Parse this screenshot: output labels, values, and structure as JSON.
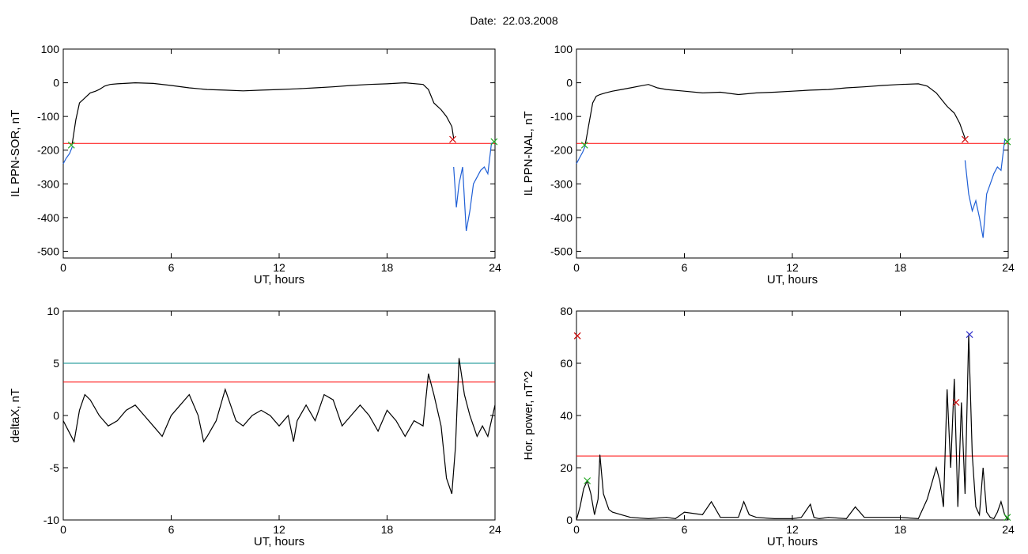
{
  "header": {
    "date_label": "Date:",
    "date_value": "22.03.2008"
  },
  "colors": {
    "data": "#000000",
    "threshold": "#ff0000",
    "threshold2": "#008b8b",
    "segment": "#1f5fd6",
    "marker_red": "#cc0000",
    "marker_green": "#22aa22",
    "marker_blue": "#3333cc"
  },
  "chart_data": [
    {
      "type": "line",
      "xlabel": "UT, hours",
      "ylabel": "IL PPN-SOR, nT",
      "xlim": [
        0,
        24
      ],
      "ylim": [
        -520,
        100
      ],
      "xticks": [
        0,
        6,
        12,
        18,
        24
      ],
      "yticks": [
        -500,
        -400,
        -300,
        -200,
        -100,
        0,
        100
      ],
      "threshold": -180,
      "series": [
        {
          "color": "#1f5fd6",
          "x": [
            0,
            0.15,
            0.35,
            0.5
          ],
          "y": [
            -240,
            -225,
            -210,
            -190
          ]
        },
        {
          "color": "#000000",
          "x": [
            0.5,
            0.7,
            0.9,
            1.1,
            1.3,
            1.5,
            1.8,
            2.0,
            2.3,
            2.6,
            3,
            4,
            5,
            6,
            7,
            8,
            9,
            10,
            11,
            12,
            13,
            14,
            15,
            16,
            17,
            18,
            19,
            20,
            20.3,
            20.6,
            21.0,
            21.3,
            21.6,
            21.7
          ],
          "y": [
            -180,
            -110,
            -60,
            -50,
            -40,
            -30,
            -25,
            -20,
            -10,
            -5,
            -3,
            0,
            -2,
            -8,
            -15,
            -20,
            -22,
            -24,
            -22,
            -20,
            -18,
            -15,
            -12,
            -8,
            -5,
            -3,
            0,
            -5,
            -20,
            -60,
            -80,
            -100,
            -130,
            -165
          ]
        },
        {
          "color": "#1f5fd6",
          "x": [
            21.7,
            21.85,
            22.0,
            22.2,
            22.4,
            22.6,
            22.8,
            23.0,
            23.2,
            23.4,
            23.6,
            23.8,
            24
          ],
          "y": [
            -250,
            -370,
            -300,
            -250,
            -440,
            -380,
            -300,
            -280,
            -260,
            -250,
            -270,
            -180,
            -175
          ]
        }
      ],
      "markers": [
        {
          "x": 21.65,
          "y": -168,
          "color": "#cc0000"
        },
        {
          "x": 0.45,
          "y": -185,
          "color": "#22aa22"
        },
        {
          "x": 23.95,
          "y": -175,
          "color": "#22aa22"
        }
      ]
    },
    {
      "type": "line",
      "xlabel": "UT, hours",
      "ylabel": "IL PPN-NAL, nT",
      "xlim": [
        0,
        24
      ],
      "ylim": [
        -520,
        100
      ],
      "xticks": [
        0,
        6,
        12,
        18,
        24
      ],
      "yticks": [
        -500,
        -400,
        -300,
        -200,
        -100,
        0,
        100
      ],
      "threshold": -180,
      "series": [
        {
          "color": "#1f5fd6",
          "x": [
            0,
            0.15,
            0.35,
            0.5
          ],
          "y": [
            -240,
            -225,
            -205,
            -185
          ]
        },
        {
          "color": "#000000",
          "x": [
            0.5,
            0.7,
            0.9,
            1.1,
            1.3,
            1.6,
            2,
            2.5,
            3,
            3.5,
            4,
            4.5,
            5,
            6,
            7,
            8,
            9,
            10,
            11,
            12,
            13,
            14,
            15,
            16,
            17,
            18,
            19,
            19.5,
            20,
            20.3,
            20.6,
            21,
            21.3,
            21.6
          ],
          "y": [
            -180,
            -120,
            -60,
            -40,
            -35,
            -30,
            -25,
            -20,
            -15,
            -10,
            -5,
            -15,
            -20,
            -25,
            -30,
            -28,
            -35,
            -30,
            -28,
            -25,
            -22,
            -20,
            -15,
            -12,
            -8,
            -5,
            -3,
            -10,
            -30,
            -50,
            -70,
            -90,
            -120,
            -165
          ]
        },
        {
          "color": "#1f5fd6",
          "x": [
            21.6,
            21.8,
            22.0,
            22.2,
            22.4,
            22.6,
            22.8,
            23.0,
            23.2,
            23.4,
            23.6,
            23.8,
            24
          ],
          "y": [
            -230,
            -330,
            -380,
            -350,
            -400,
            -460,
            -330,
            -300,
            -270,
            -250,
            -260,
            -170,
            -175
          ]
        }
      ],
      "markers": [
        {
          "x": 21.6,
          "y": -168,
          "color": "#cc0000"
        },
        {
          "x": 0.45,
          "y": -185,
          "color": "#22aa22"
        },
        {
          "x": 23.95,
          "y": -175,
          "color": "#22aa22"
        }
      ]
    },
    {
      "type": "line",
      "xlabel": "UT, hours",
      "ylabel": "deltaX, nT",
      "xlim": [
        0,
        24
      ],
      "ylim": [
        -10,
        10
      ],
      "xticks": [
        0,
        6,
        12,
        18,
        24
      ],
      "yticks": [
        -10,
        -5,
        0,
        5,
        10
      ],
      "threshold": 3.2,
      "threshold2": 5,
      "series": [
        {
          "color": "#000000",
          "x": [
            0,
            0.3,
            0.6,
            0.9,
            1.2,
            1.5,
            2,
            2.5,
            3,
            3.5,
            4,
            4.5,
            5,
            5.5,
            6,
            6.5,
            7,
            7.5,
            7.8,
            8,
            8.5,
            9,
            9.3,
            9.6,
            10,
            10.5,
            11,
            11.5,
            12,
            12.5,
            12.8,
            13,
            13.5,
            14,
            14.5,
            15,
            15.5,
            16,
            16.5,
            17,
            17.5,
            18,
            18.5,
            19,
            19.5,
            20,
            20.3,
            20.6,
            21,
            21.3,
            21.6,
            21.8,
            22,
            22.3,
            22.6,
            23,
            23.3,
            23.6,
            24
          ],
          "y": [
            -0.5,
            -1.5,
            -2.5,
            0.5,
            2,
            1.5,
            0,
            -1,
            -0.5,
            0.5,
            1,
            0,
            -1,
            -2,
            0,
            1,
            2,
            0,
            -2.5,
            -2,
            -0.5,
            2.5,
            1,
            -0.5,
            -1,
            0,
            0.5,
            0,
            -1,
            0,
            -2.5,
            -0.5,
            1,
            -0.5,
            2,
            1.5,
            -1,
            0,
            1,
            0,
            -1.5,
            0.5,
            -0.5,
            -2,
            -0.5,
            -1,
            4,
            2,
            -1,
            -6,
            -7.5,
            -3,
            5.5,
            2,
            0,
            -2,
            -1,
            -2,
            1
          ]
        }
      ],
      "markers": []
    },
    {
      "type": "line",
      "xlabel": "UT, hours",
      "ylabel": "Hor. power, nT^2",
      "xlim": [
        0,
        24
      ],
      "ylim": [
        0,
        80
      ],
      "xticks": [
        0,
        6,
        12,
        18,
        24
      ],
      "yticks": [
        0,
        20,
        40,
        60,
        80
      ],
      "threshold": 24.5,
      "series": [
        {
          "color": "#000000",
          "x": [
            0,
            0.2,
            0.4,
            0.6,
            0.8,
            1.0,
            1.2,
            1.3,
            1.5,
            1.8,
            2,
            2.5,
            3,
            4,
            5,
            5.5,
            6,
            7,
            7.5,
            8,
            9,
            9.3,
            9.6,
            10,
            11,
            12,
            12.5,
            13,
            13.2,
            13.5,
            14,
            15,
            15.5,
            16,
            17,
            18,
            19,
            19.5,
            20,
            20.2,
            20.4,
            20.6,
            20.8,
            21.0,
            21.2,
            21.4,
            21.6,
            21.8,
            22.0,
            22.2,
            22.4,
            22.6,
            22.8,
            23.0,
            23.2,
            23.4,
            23.6,
            23.8,
            24
          ],
          "y": [
            0,
            5,
            12,
            15,
            10,
            2,
            8,
            25,
            10,
            4,
            3,
            2,
            1,
            0.5,
            1,
            0.5,
            3,
            2,
            7,
            1,
            1,
            7,
            2,
            1,
            0.5,
            0.5,
            1,
            6,
            1,
            0.5,
            1,
            0.5,
            5,
            1,
            1,
            1,
            0.5,
            8,
            20,
            15,
            5,
            50,
            20,
            54,
            5,
            45,
            10,
            71,
            25,
            5,
            2,
            20,
            3,
            1,
            0.5,
            3,
            7,
            2,
            0
          ]
        }
      ],
      "markers": [
        {
          "x": 0.05,
          "y": 70.5,
          "color": "#cc0000"
        },
        {
          "x": 0.6,
          "y": 15,
          "color": "#22aa22"
        },
        {
          "x": 21.1,
          "y": 45,
          "color": "#cc0000"
        },
        {
          "x": 21.85,
          "y": 71,
          "color": "#3333cc"
        },
        {
          "x": 23.95,
          "y": 1,
          "color": "#22aa22"
        }
      ]
    }
  ]
}
